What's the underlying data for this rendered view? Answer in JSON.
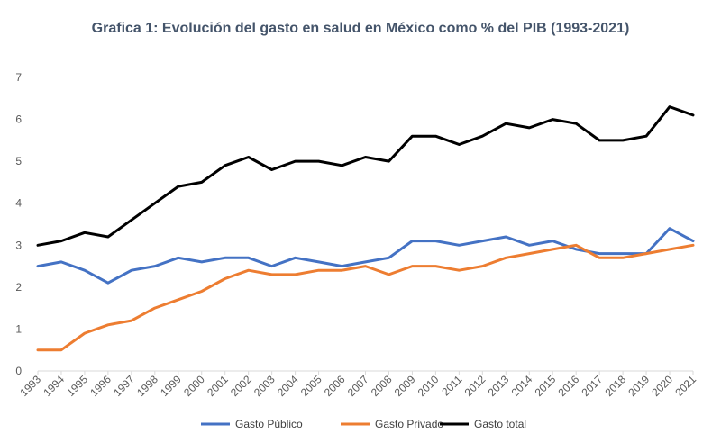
{
  "chart_data": {
    "type": "line",
    "title": "Grafica 1: Evolución del gasto en salud en México como % del PIB (1993-2021)",
    "xlabel": "",
    "ylabel": "",
    "ylim": [
      0,
      7
    ],
    "yticks": [
      "0",
      "1",
      "2",
      "3",
      "4",
      "5",
      "6",
      "7"
    ],
    "grid": false,
    "legend_position": "bottom",
    "x": [
      "1993",
      "1994",
      "1995",
      "1996",
      "1997",
      "1998",
      "1999",
      "2000",
      "2001",
      "2002",
      "2003",
      "2004",
      "2005",
      "2006",
      "2007",
      "2008",
      "2009",
      "2010",
      "2011",
      "2012",
      "2013",
      "2014",
      "2015",
      "2016",
      "2017",
      "2018",
      "2019",
      "2020",
      "2021"
    ],
    "series": [
      {
        "name": "Gasto Público",
        "color": "#4472c4",
        "values": [
          2.5,
          2.6,
          2.4,
          2.1,
          2.4,
          2.5,
          2.7,
          2.6,
          2.7,
          2.7,
          2.5,
          2.7,
          2.6,
          2.5,
          2.6,
          2.7,
          3.1,
          3.1,
          3.0,
          3.1,
          3.2,
          3.0,
          3.1,
          2.9,
          2.8,
          2.8,
          2.8,
          3.4,
          3.1
        ]
      },
      {
        "name": "Gasto Privado",
        "color": "#ed7d31",
        "values": [
          0.5,
          0.5,
          0.9,
          1.1,
          1.2,
          1.5,
          1.7,
          1.9,
          2.2,
          2.4,
          2.3,
          2.3,
          2.4,
          2.4,
          2.5,
          2.3,
          2.5,
          2.5,
          2.4,
          2.5,
          2.7,
          2.8,
          2.9,
          3.0,
          2.7,
          2.7,
          2.8,
          2.9,
          3.0
        ]
      },
      {
        "name": "Gasto total",
        "color": "#000000",
        "values": [
          3.0,
          3.1,
          3.3,
          3.2,
          3.6,
          4.0,
          4.4,
          4.5,
          4.9,
          5.1,
          4.8,
          5.0,
          5.0,
          4.9,
          5.1,
          5.0,
          5.6,
          5.6,
          5.4,
          5.6,
          5.9,
          5.8,
          6.0,
          5.9,
          5.5,
          5.5,
          5.6,
          6.3,
          6.1
        ]
      }
    ]
  }
}
